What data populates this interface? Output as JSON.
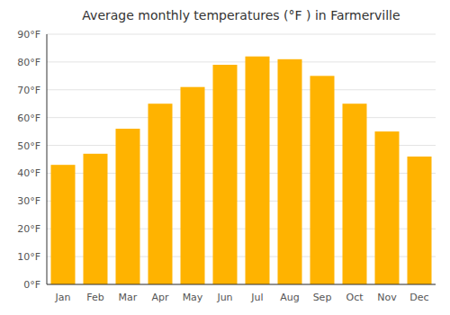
{
  "chart_data": {
    "type": "bar",
    "title": "Average monthly temperatures (°F ) in Farmerville",
    "categories": [
      "Jan",
      "Feb",
      "Mar",
      "Apr",
      "May",
      "Jun",
      "Jul",
      "Aug",
      "Sep",
      "Oct",
      "Nov",
      "Dec"
    ],
    "values": [
      43,
      47,
      56,
      65,
      71,
      79,
      82,
      81,
      75,
      65,
      55,
      46
    ],
    "color": "#FFB300",
    "ylim": [
      0,
      90
    ],
    "yticks": [
      {
        "value": 0,
        "label": "0°F"
      },
      {
        "value": 10,
        "label": "10°F"
      },
      {
        "value": 20,
        "label": "20°F"
      },
      {
        "value": 30,
        "label": "30°F"
      },
      {
        "value": 40,
        "label": "40°F"
      },
      {
        "value": 50,
        "label": "50°F"
      },
      {
        "value": 60,
        "label": "60°F"
      },
      {
        "value": 70,
        "label": "70°F"
      },
      {
        "value": 80,
        "label": "80°F"
      },
      {
        "value": 90,
        "label": "90°F"
      }
    ],
    "grid": true
  }
}
